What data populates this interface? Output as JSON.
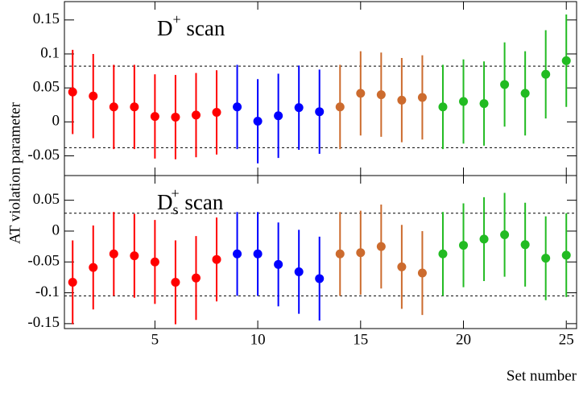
{
  "chart_data": [
    {
      "type": "errorbar",
      "annotation": {
        "main": "D",
        "sup": "+",
        "rest": " scan"
      },
      "ylabel": "AT violation parameter",
      "x": [
        1,
        2,
        3,
        4,
        5,
        6,
        7,
        8,
        9,
        10,
        11,
        12,
        13,
        14,
        15,
        16,
        17,
        18,
        19,
        20,
        21,
        22,
        23,
        24,
        25
      ],
      "values": [
        0.044,
        0.038,
        0.022,
        0.022,
        0.008,
        0.007,
        0.01,
        0.014,
        0.022,
        0.001,
        0.009,
        0.021,
        0.015,
        0.022,
        0.042,
        0.04,
        0.032,
        0.036,
        0.022,
        0.03,
        0.027,
        0.055,
        0.042,
        0.07,
        0.09
      ],
      "errors": [
        0.062,
        0.062,
        0.062,
        0.062,
        0.062,
        0.062,
        0.062,
        0.062,
        0.062,
        0.062,
        0.062,
        0.062,
        0.062,
        0.062,
        0.062,
        0.062,
        0.062,
        0.062,
        0.062,
        0.062,
        0.062,
        0.062,
        0.062,
        0.065,
        0.068
      ],
      "colors": [
        "#ff0000",
        "#ff0000",
        "#ff0000",
        "#ff0000",
        "#ff0000",
        "#ff0000",
        "#ff0000",
        "#ff0000",
        "#0000ff",
        "#0000ff",
        "#0000ff",
        "#0000ff",
        "#0000ff",
        "#cc6b2e",
        "#cc6b2e",
        "#cc6b2e",
        "#cc6b2e",
        "#cc6b2e",
        "#22bb22",
        "#22bb22",
        "#22bb22",
        "#22bb22",
        "#22bb22",
        "#22bb22",
        "#22bb22"
      ],
      "hlines": [
        0.082,
        -0.038
      ],
      "xlim": [
        0.6,
        25.5
      ],
      "xticks": [
        5,
        10,
        15,
        20,
        25
      ],
      "xtick_labels": false,
      "ylim": [
        -0.079,
        0.177
      ],
      "yticks": [
        -0.05,
        0,
        0.05,
        0.1,
        0.15
      ]
    },
    {
      "type": "errorbar",
      "annotation": {
        "main": "D",
        "sup": "+",
        "sub": "s",
        "rest": " scan"
      },
      "xlabel": "Set number",
      "x": [
        1,
        2,
        3,
        4,
        5,
        6,
        7,
        8,
        9,
        10,
        11,
        12,
        13,
        14,
        15,
        16,
        17,
        18,
        19,
        20,
        21,
        22,
        23,
        24,
        25
      ],
      "values": [
        -0.083,
        -0.059,
        -0.037,
        -0.04,
        -0.05,
        -0.083,
        -0.076,
        -0.046,
        -0.037,
        -0.037,
        -0.054,
        -0.066,
        -0.077,
        -0.037,
        -0.035,
        -0.025,
        -0.058,
        -0.068,
        -0.037,
        -0.023,
        -0.013,
        -0.006,
        -0.022,
        -0.044,
        -0.039
      ],
      "errors": [
        0.068,
        0.068,
        0.068,
        0.068,
        0.068,
        0.068,
        0.068,
        0.068,
        0.068,
        0.068,
        0.068,
        0.068,
        0.068,
        0.068,
        0.068,
        0.068,
        0.068,
        0.068,
        0.068,
        0.068,
        0.068,
        0.068,
        0.068,
        0.068,
        0.068
      ],
      "colors": [
        "#ff0000",
        "#ff0000",
        "#ff0000",
        "#ff0000",
        "#ff0000",
        "#ff0000",
        "#ff0000",
        "#ff0000",
        "#0000ff",
        "#0000ff",
        "#0000ff",
        "#0000ff",
        "#0000ff",
        "#cc6b2e",
        "#cc6b2e",
        "#cc6b2e",
        "#cc6b2e",
        "#cc6b2e",
        "#22bb22",
        "#22bb22",
        "#22bb22",
        "#22bb22",
        "#22bb22",
        "#22bb22",
        "#22bb22"
      ],
      "hlines": [
        0.029,
        -0.105
      ],
      "xlim": [
        0.6,
        25.5
      ],
      "xticks": [
        5,
        10,
        15,
        20,
        25
      ],
      "xtick_labels": true,
      "ylim": [
        -0.158,
        0.09
      ],
      "yticks": [
        -0.15,
        -0.1,
        -0.05,
        0,
        0.05
      ]
    }
  ]
}
